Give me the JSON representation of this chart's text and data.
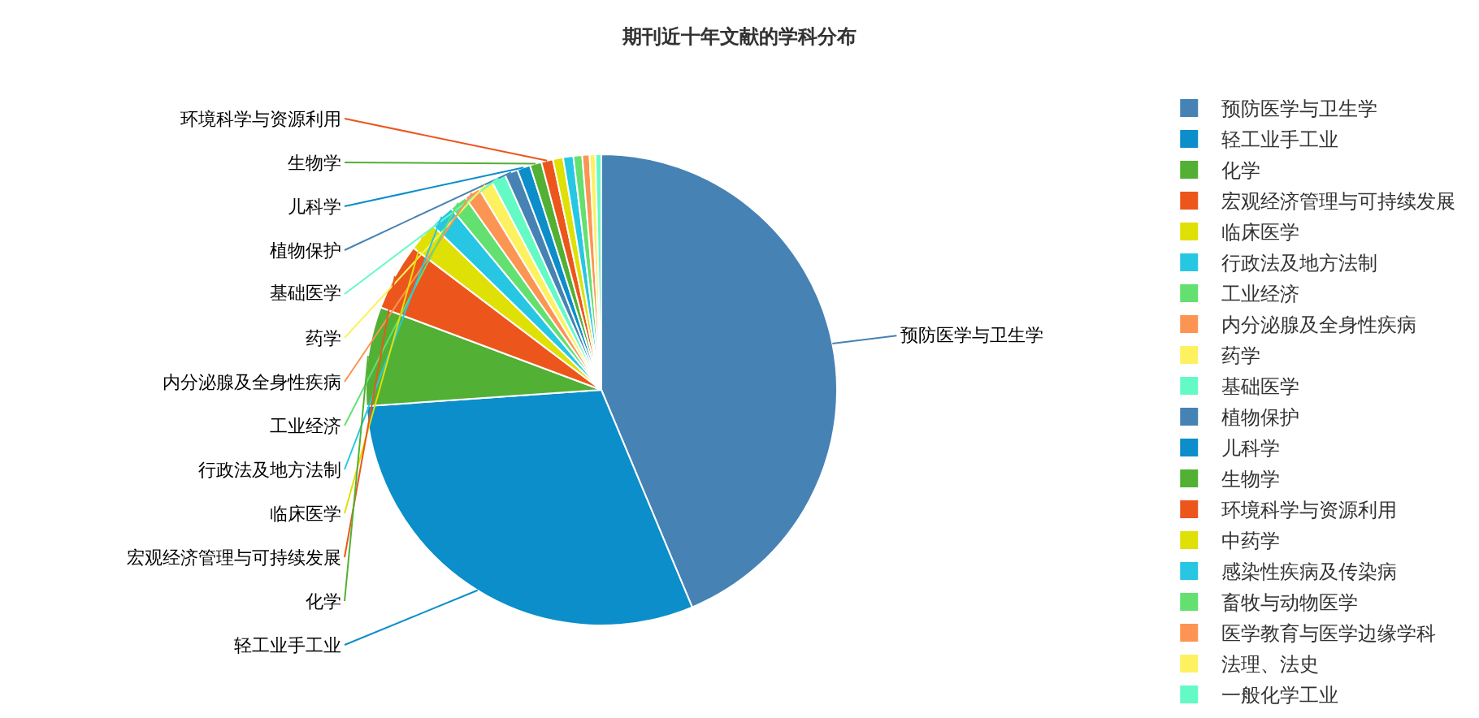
{
  "chart_data": {
    "type": "pie",
    "title": "期刊近十年文献的学科分布",
    "categories": [
      "预防医学与卫生学",
      "轻工业手工业",
      "化学",
      "宏观经济管理与可持续发展",
      "临床医学",
      "行政法及地方法制",
      "工业经济",
      "内分泌腺及全身性疾病",
      "药学",
      "基础医学",
      "植物保护",
      "儿科学",
      "生物学",
      "环境科学与资源利用",
      "中药学",
      "感染性疾病及传染病",
      "畜牧与动物医学",
      "医学教育与医学边缘学科",
      "法理、法史",
      "一般化学工业"
    ],
    "values": [
      43.7,
      30.2,
      6.8,
      4.6,
      2.0,
      1.7,
      1.2,
      1.1,
      1.0,
      1.0,
      0.9,
      0.9,
      0.8,
      0.8,
      0.7,
      0.7,
      0.6,
      0.5,
      0.4,
      0.4
    ],
    "colors": [
      "#4682b4",
      "#0b8ec9",
      "#52b034",
      "#ec561c",
      "#dfe005",
      "#27c7e3",
      "#63e070",
      "#fc9554",
      "#fdf160",
      "#64fac6",
      "#4682b4",
      "#0b8ec9",
      "#52b034",
      "#ec561c",
      "#dfe005",
      "#27c7e3",
      "#63e070",
      "#fc9554",
      "#fdf160",
      "#64fac6"
    ],
    "value_labels": [
      "预防医学与卫生学",
      "轻工业手工业",
      "化学",
      "宏观经济管理与可持续发展",
      "临床医学",
      "行政法及地方法制",
      "工业经济",
      "内分泌腺及全身性疾病",
      "药学",
      "基础医学",
      "植物保护",
      "儿科学",
      "生物学",
      "环境科学与资源利用",
      null,
      null,
      null,
      null,
      null,
      null
    ],
    "legend": "right"
  }
}
